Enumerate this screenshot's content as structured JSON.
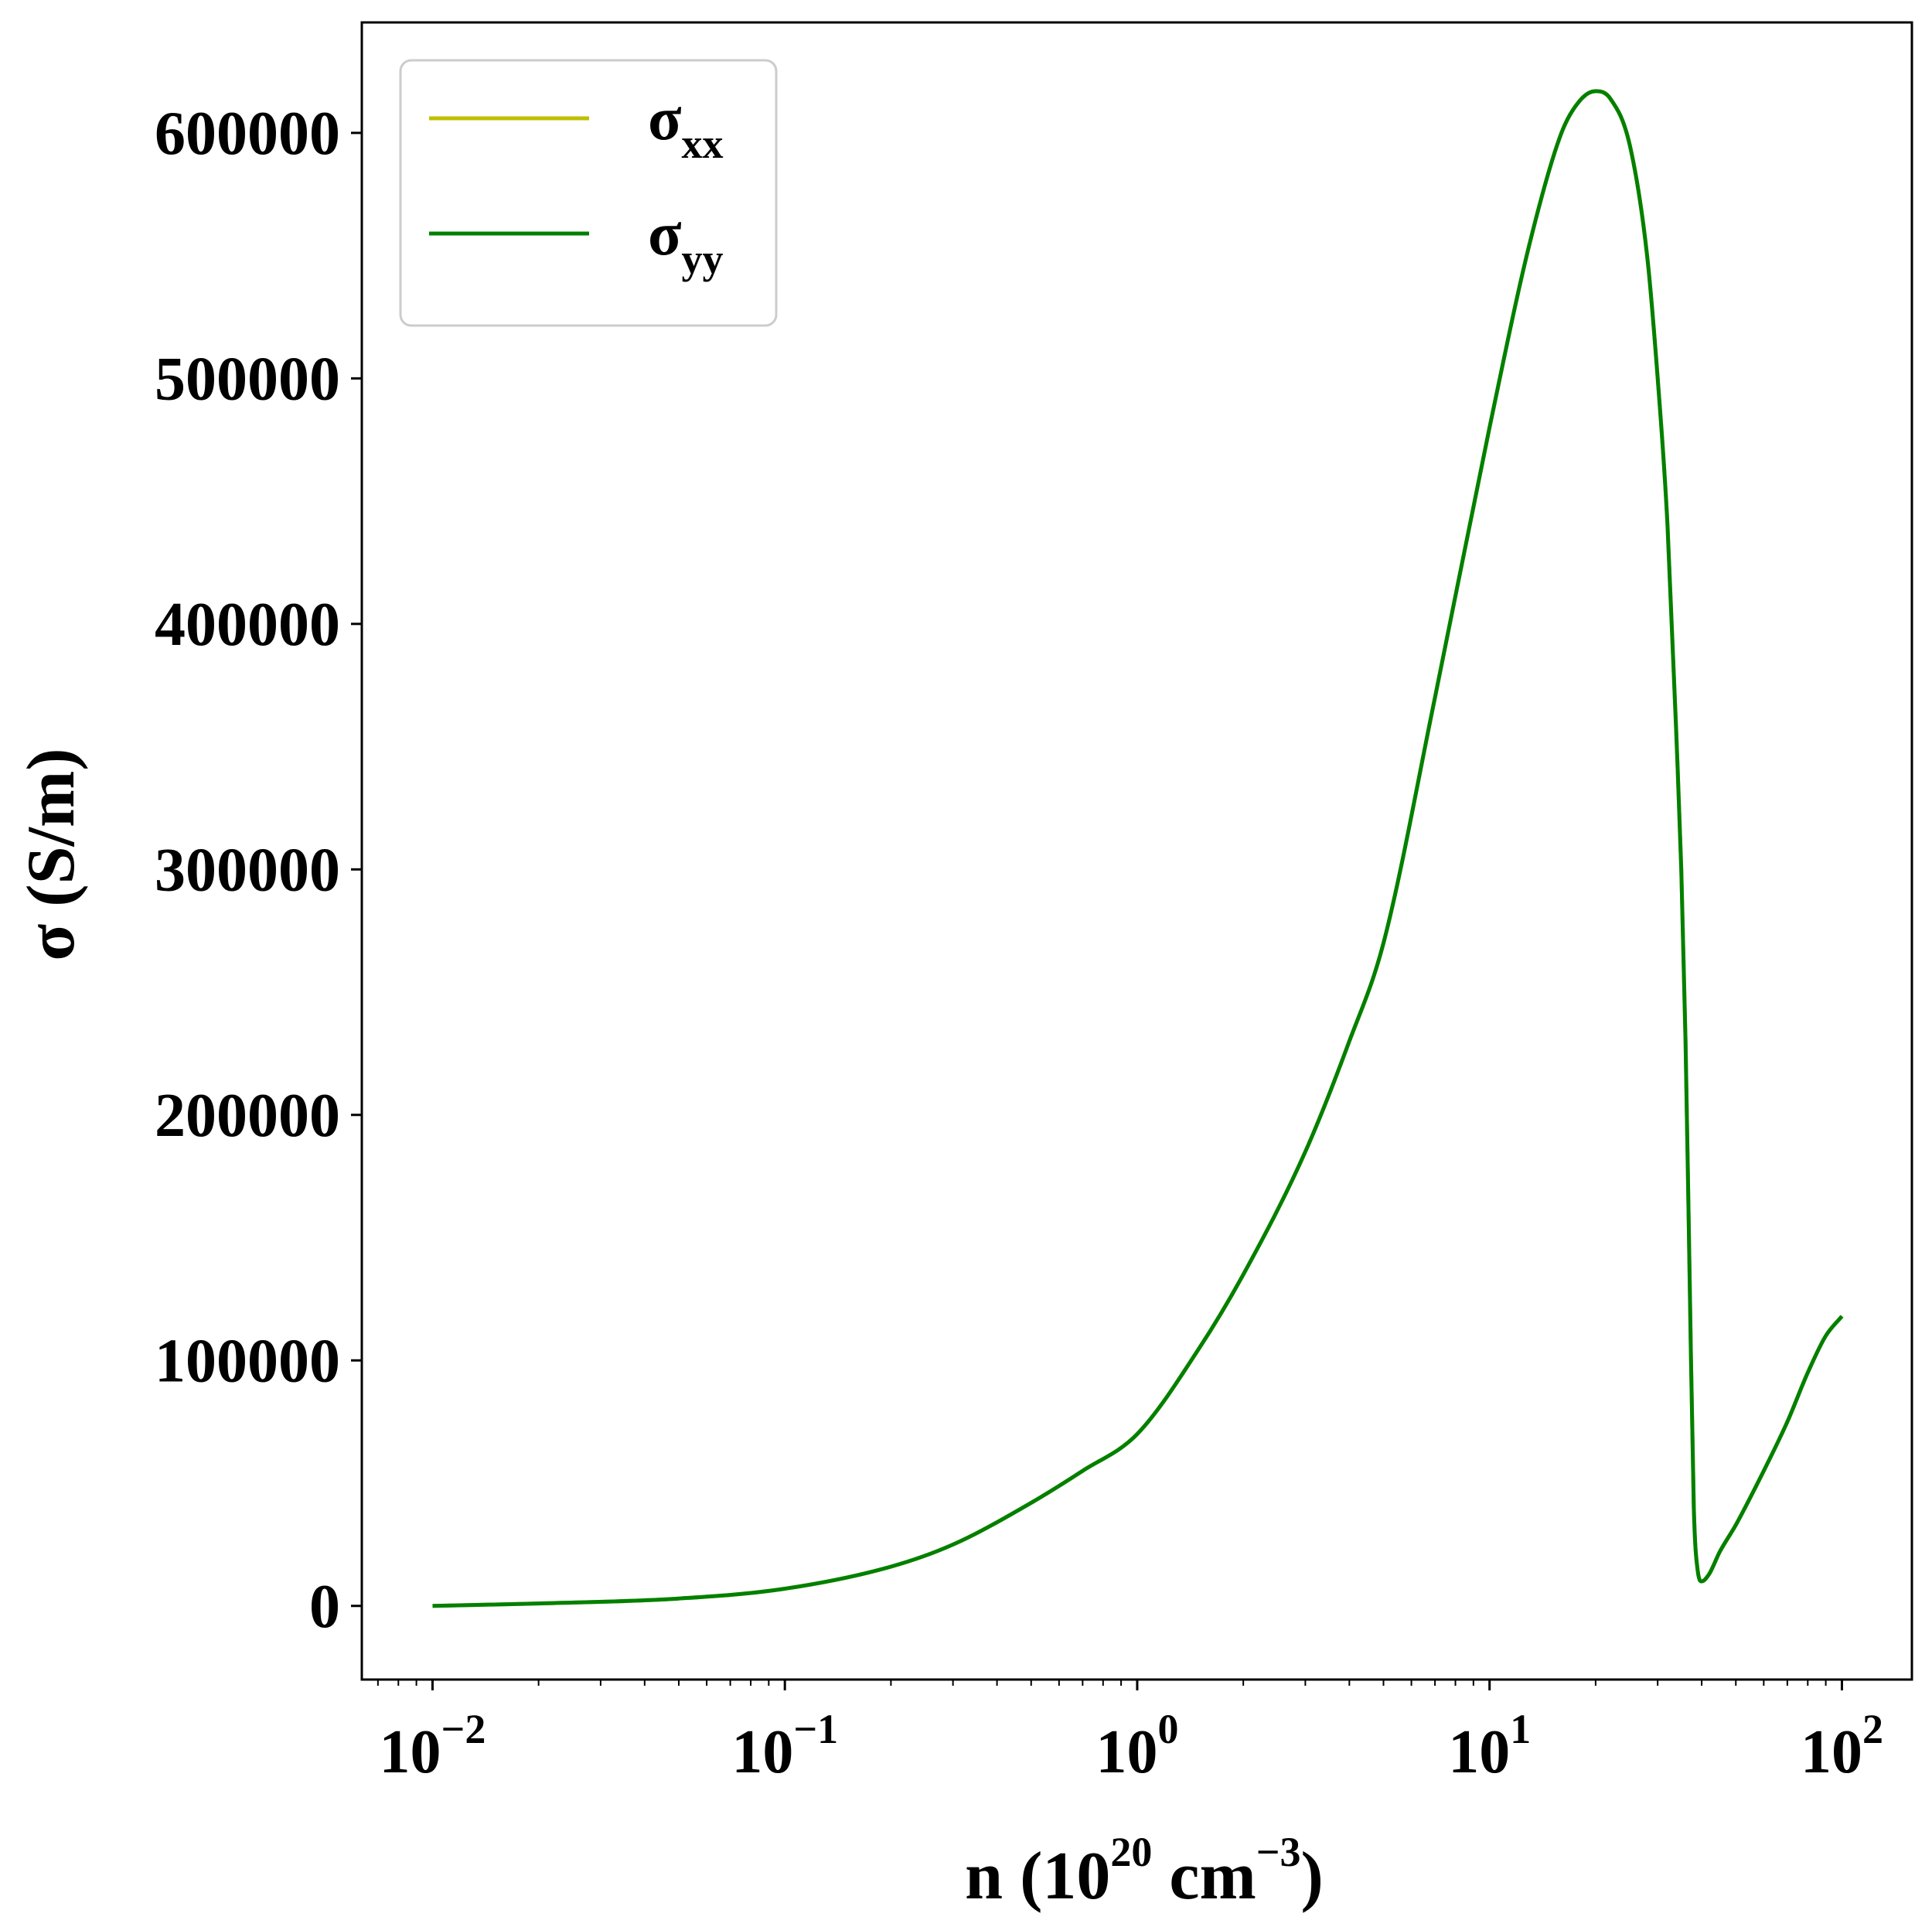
{
  "chart_data": {
    "type": "line",
    "xscale": "log",
    "xlim": [
      0.0063,
      158
    ],
    "ylim": [
      -30000,
      645000
    ],
    "grid": false,
    "legend_position": "top-left",
    "xlabel": {
      "prefix": "n (10",
      "sup1": "20",
      "mid": " cm",
      "sup2": "−3",
      "suffix": ")"
    },
    "ylabel": "σ (S/m)",
    "yticks": [
      {
        "value": 0,
        "label": "0"
      },
      {
        "value": 100000,
        "label": "100000"
      },
      {
        "value": 200000,
        "label": "200000"
      },
      {
        "value": 300000,
        "label": "300000"
      },
      {
        "value": 400000,
        "label": "400000"
      },
      {
        "value": 500000,
        "label": "500000"
      },
      {
        "value": 600000,
        "label": "600000"
      }
    ],
    "xticks": [
      {
        "value": 0.01,
        "base": "10",
        "exp": "−2"
      },
      {
        "value": 0.1,
        "base": "10",
        "exp": "−1"
      },
      {
        "value": 1,
        "base": "10",
        "exp": "0"
      },
      {
        "value": 10,
        "base": "10",
        "exp": "1"
      },
      {
        "value": 100,
        "base": "10",
        "exp": "2"
      }
    ],
    "series": [
      {
        "name": "σ",
        "subscript": "xx",
        "color": "#bfbf00",
        "x": [
          0.01,
          0.02,
          0.05,
          0.1,
          0.2,
          0.3,
          0.5,
          0.7,
          1.0,
          1.5,
          2.0,
          3.0,
          4.0,
          5.0,
          7.0,
          10.0,
          13.0,
          16.0,
          18.0,
          20.0,
          22.0,
          25.0,
          28.0,
          30.0,
          32.0,
          34.0,
          35.0,
          36.0,
          37.0,
          38.0,
          39.0,
          40.0,
          42.0,
          45.0,
          50.0,
          60.0,
          70.0,
          80.0,
          90.0,
          100.0
        ],
        "y": [
          0,
          1000,
          3000,
          7000,
          16000,
          25000,
          42000,
          55000,
          70000,
          105000,
          135000,
          185000,
          230000,
          270000,
          370000,
          480000,
          555000,
          600000,
          613000,
          617000,
          614000,
          595000,
          550000,
          500000,
          440000,
          350000,
          300000,
          230000,
          130000,
          40000,
          14000,
          10000,
          13000,
          22000,
          33000,
          55000,
          75000,
          95000,
          110000,
          118000
        ]
      },
      {
        "name": "σ",
        "subscript": "yy",
        "color": "#008000",
        "x": [
          0.01,
          0.02,
          0.05,
          0.1,
          0.2,
          0.3,
          0.5,
          0.7,
          1.0,
          1.5,
          2.0,
          3.0,
          4.0,
          5.0,
          7.0,
          10.0,
          13.0,
          16.0,
          18.0,
          20.0,
          22.0,
          25.0,
          28.0,
          30.0,
          32.0,
          34.0,
          35.0,
          36.0,
          37.0,
          38.0,
          39.0,
          40.0,
          42.0,
          45.0,
          50.0,
          60.0,
          70.0,
          80.0,
          90.0,
          100.0
        ],
        "y": [
          0,
          1000,
          3000,
          7000,
          16000,
          25000,
          42000,
          55000,
          70000,
          105000,
          135000,
          185000,
          230000,
          270000,
          370000,
          480000,
          555000,
          600000,
          613000,
          617000,
          614000,
          595000,
          550000,
          500000,
          440000,
          350000,
          300000,
          230000,
          130000,
          40000,
          14000,
          10000,
          13000,
          22000,
          33000,
          55000,
          75000,
          95000,
          110000,
          118000
        ]
      }
    ]
  }
}
